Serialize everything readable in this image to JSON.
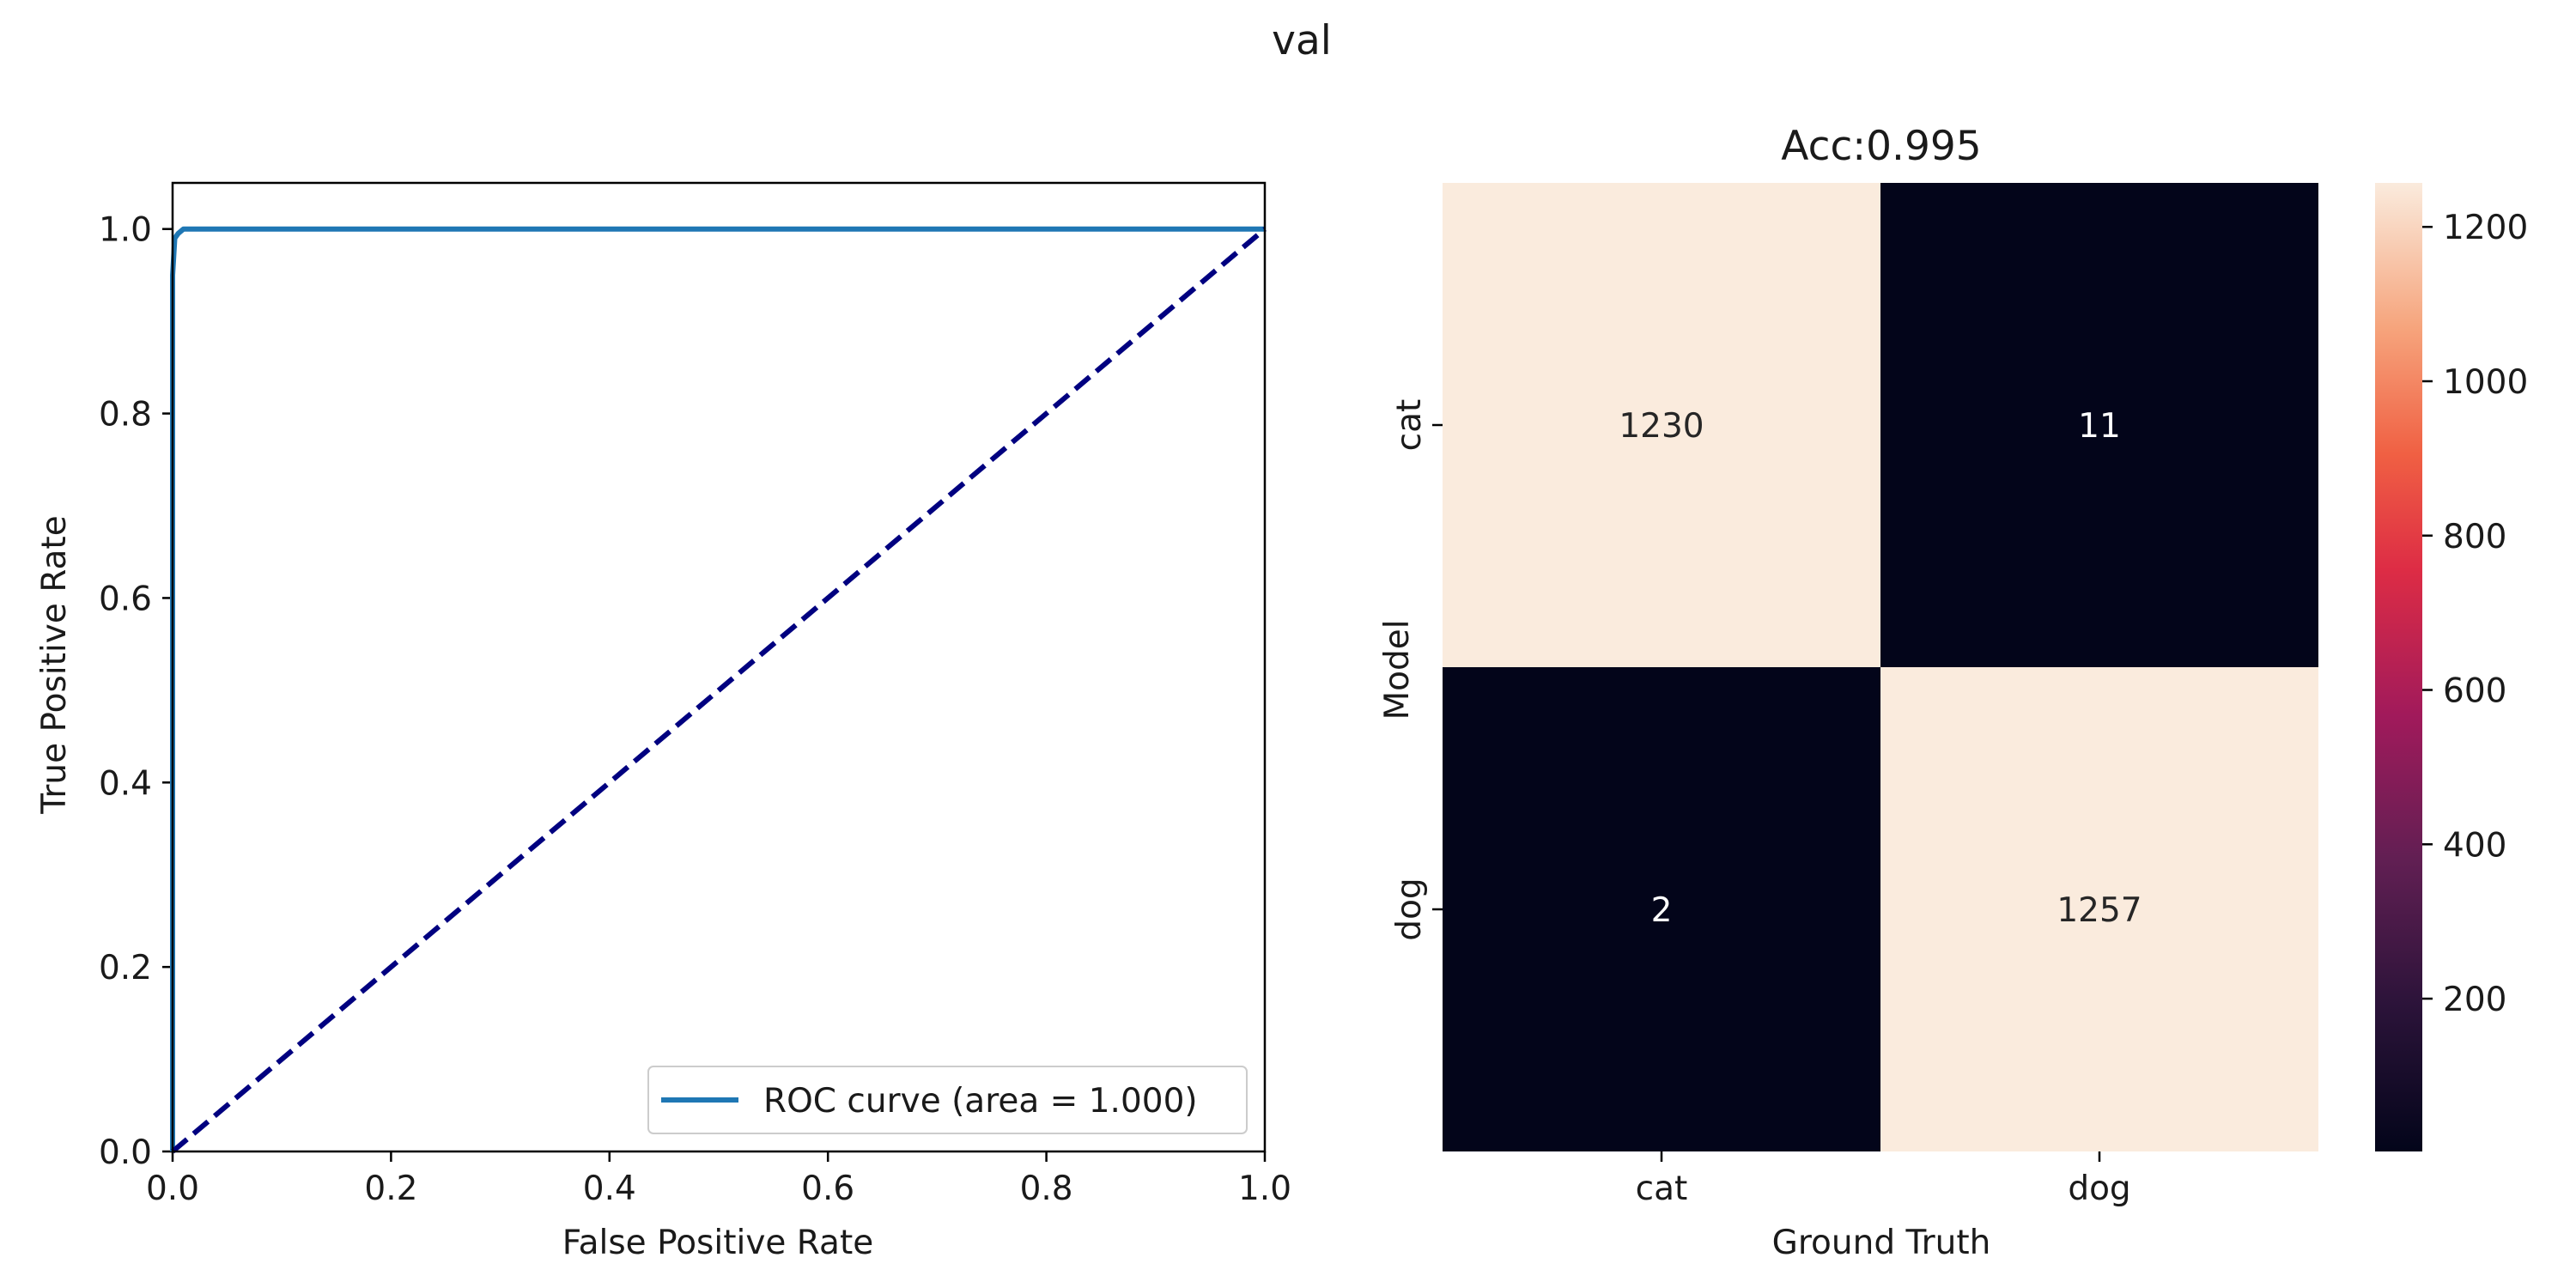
{
  "suptitle": "val",
  "chart_data": [
    {
      "type": "line",
      "title": "",
      "xlabel": "False Positive Rate",
      "ylabel": "True Positive Rate",
      "xlim": [
        0.0,
        1.0
      ],
      "ylim": [
        0.0,
        1.05
      ],
      "xticks": [
        "0.0",
        "0.2",
        "0.4",
        "0.6",
        "0.8",
        "1.0"
      ],
      "yticks": [
        "0.0",
        "0.2",
        "0.4",
        "0.6",
        "0.8",
        "1.0"
      ],
      "grid": false,
      "legend_position": "lower-right",
      "series": [
        {
          "name": "ROC curve (area = 1.000)",
          "color": "#1f77b4",
          "style": "solid",
          "x": [
            0.0,
            0.0,
            0.0,
            0.002,
            0.005,
            0.01,
            0.02,
            1.0
          ],
          "y": [
            0.0,
            0.86,
            0.95,
            0.99,
            0.995,
            1.0,
            1.0,
            1.0
          ]
        },
        {
          "name": "",
          "color": "#000080",
          "style": "dashed",
          "x": [
            0.0,
            1.0
          ],
          "y": [
            0.0,
            1.0
          ]
        }
      ]
    },
    {
      "type": "heatmap",
      "title": "Acc:0.995",
      "xlabel": "Ground Truth",
      "ylabel": "Model",
      "x_categories": [
        "cat",
        "dog"
      ],
      "y_categories": [
        "cat",
        "dog"
      ],
      "values": [
        [
          1230,
          11
        ],
        [
          2,
          1257
        ]
      ],
      "colormap": "rocket",
      "colorbar": {
        "min": 2,
        "max": 1257,
        "ticks": [
          200,
          400,
          600,
          800,
          1000,
          1200
        ]
      }
    }
  ]
}
